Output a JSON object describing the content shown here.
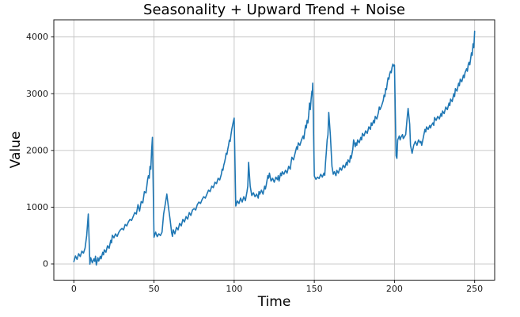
{
  "figure": {
    "background_color": "#ffffff"
  },
  "chart_data": {
    "type": "line",
    "title": "Seasonality + Upward Trend + Noise",
    "xlabel": "Time",
    "ylabel": "Value",
    "xlim": [
      -12.5,
      262.5
    ],
    "ylim": [
      -286,
      4302
    ],
    "xticks": [
      0,
      50,
      100,
      150,
      200,
      250
    ],
    "yticks": [
      0,
      1000,
      2000,
      3000,
      4000
    ],
    "grid": true,
    "legend_position": "none",
    "line_color": "#1f77b4",
    "line_width": 1.6,
    "grid_color": "#c3c3c3",
    "spine_color": "#1a1a1a",
    "tick_label_color": "#1a1a1a",
    "series": [
      {
        "name": "value",
        "points": [
          [
            0,
            40
          ],
          [
            1,
            140
          ],
          [
            2,
            80
          ],
          [
            3,
            180
          ],
          [
            4,
            130
          ],
          [
            5,
            225
          ],
          [
            6,
            190
          ],
          [
            7,
            280
          ],
          [
            8,
            500
          ],
          [
            9,
            880
          ],
          [
            10,
            -5
          ],
          [
            10.5,
            110
          ],
          [
            11.5,
            20
          ],
          [
            12.5,
            90
          ],
          [
            13,
            45
          ],
          [
            13.5,
            135
          ],
          [
            14,
            -20
          ],
          [
            15,
            110
          ],
          [
            15.5,
            50
          ],
          [
            16.5,
            135
          ],
          [
            17,
            90
          ],
          [
            18,
            205
          ],
          [
            18.5,
            160
          ],
          [
            19,
            250
          ],
          [
            20,
            205
          ],
          [
            21,
            320
          ],
          [
            22,
            275
          ],
          [
            23,
            415
          ],
          [
            23.5,
            370
          ],
          [
            24,
            505
          ],
          [
            25,
            460
          ],
          [
            26,
            530
          ],
          [
            27,
            485
          ],
          [
            28,
            555
          ],
          [
            29,
            600
          ],
          [
            30,
            625
          ],
          [
            31,
            600
          ],
          [
            32,
            695
          ],
          [
            33,
            670
          ],
          [
            34,
            740
          ],
          [
            35,
            785
          ],
          [
            36,
            765
          ],
          [
            37,
            835
          ],
          [
            38,
            905
          ],
          [
            39,
            880
          ],
          [
            40,
            1045
          ],
          [
            41,
            930
          ],
          [
            42,
            1100
          ],
          [
            43,
            1075
          ],
          [
            44,
            1275
          ],
          [
            45,
            1250
          ],
          [
            46,
            1485
          ],
          [
            46.5,
            1555
          ],
          [
            47,
            1510
          ],
          [
            47.5,
            1720
          ],
          [
            48,
            1670
          ],
          [
            48.5,
            2000
          ],
          [
            49,
            2230
          ],
          [
            50,
            470
          ],
          [
            51,
            560
          ],
          [
            52,
            480
          ],
          [
            53,
            530
          ],
          [
            54,
            500
          ],
          [
            55,
            560
          ],
          [
            56,
            880
          ],
          [
            57,
            1050
          ],
          [
            58,
            1230
          ],
          [
            59,
            1000
          ],
          [
            60,
            790
          ],
          [
            61,
            550
          ],
          [
            61.5,
            485
          ],
          [
            62,
            600
          ],
          [
            63,
            530
          ],
          [
            64,
            645
          ],
          [
            65,
            600
          ],
          [
            66,
            715
          ],
          [
            67,
            670
          ],
          [
            68,
            785
          ],
          [
            69,
            740
          ],
          [
            70,
            835
          ],
          [
            71,
            790
          ],
          [
            72,
            905
          ],
          [
            73,
            855
          ],
          [
            74,
            950
          ],
          [
            75,
            975
          ],
          [
            76,
            950
          ],
          [
            77,
            1045
          ],
          [
            78,
            1090
          ],
          [
            79,
            1065
          ],
          [
            80,
            1135
          ],
          [
            81,
            1185
          ],
          [
            82,
            1160
          ],
          [
            83,
            1230
          ],
          [
            84,
            1300
          ],
          [
            85,
            1275
          ],
          [
            86,
            1370
          ],
          [
            87,
            1345
          ],
          [
            88,
            1440
          ],
          [
            89,
            1415
          ],
          [
            90,
            1510
          ],
          [
            91,
            1480
          ],
          [
            92,
            1580
          ],
          [
            92.5,
            1670
          ],
          [
            93,
            1650
          ],
          [
            93.5,
            1740
          ],
          [
            94,
            1790
          ],
          [
            94.5,
            1860
          ],
          [
            95,
            1950
          ],
          [
            95.5,
            1930
          ],
          [
            96,
            2020
          ],
          [
            96.5,
            2090
          ],
          [
            97,
            2180
          ],
          [
            97.5,
            2160
          ],
          [
            98,
            2275
          ],
          [
            98.5,
            2370
          ],
          [
            99,
            2440
          ],
          [
            99.5,
            2510
          ],
          [
            100,
            2570
          ],
          [
            101,
            1020
          ],
          [
            102,
            1110
          ],
          [
            103,
            1065
          ],
          [
            104,
            1160
          ],
          [
            105,
            1090
          ],
          [
            106,
            1185
          ],
          [
            107,
            1115
          ],
          [
            108,
            1275
          ],
          [
            108.5,
            1370
          ],
          [
            109,
            1790
          ],
          [
            110,
            1370
          ],
          [
            111,
            1205
          ],
          [
            112,
            1255
          ],
          [
            113,
            1185
          ],
          [
            114,
            1230
          ],
          [
            115,
            1160
          ],
          [
            115.5,
            1275
          ],
          [
            116,
            1230
          ],
          [
            117,
            1300
          ],
          [
            118,
            1230
          ],
          [
            119,
            1370
          ],
          [
            119.5,
            1320
          ],
          [
            120,
            1390
          ],
          [
            121,
            1555
          ],
          [
            121.5,
            1510
          ],
          [
            122,
            1600
          ],
          [
            123,
            1460
          ],
          [
            124,
            1510
          ],
          [
            125,
            1440
          ],
          [
            126,
            1530
          ],
          [
            127,
            1485
          ],
          [
            127.5,
            1555
          ],
          [
            128,
            1460
          ],
          [
            129,
            1600
          ],
          [
            129.5,
            1555
          ],
          [
            130,
            1625
          ],
          [
            131,
            1580
          ],
          [
            132,
            1650
          ],
          [
            133,
            1600
          ],
          [
            134,
            1720
          ],
          [
            135,
            1670
          ],
          [
            135.5,
            1790
          ],
          [
            136,
            1880
          ],
          [
            137,
            1835
          ],
          [
            138,
            1950
          ],
          [
            139,
            2065
          ],
          [
            139.5,
            2020
          ],
          [
            140,
            2135
          ],
          [
            141,
            2090
          ],
          [
            142,
            2185
          ],
          [
            143,
            2255
          ],
          [
            143.5,
            2205
          ],
          [
            144,
            2325
          ],
          [
            144.5,
            2440
          ],
          [
            145,
            2395
          ],
          [
            145.5,
            2530
          ],
          [
            146,
            2485
          ],
          [
            146.5,
            2625
          ],
          [
            147,
            2835
          ],
          [
            147.5,
            2720
          ],
          [
            148,
            2905
          ],
          [
            148.5,
            3045
          ],
          [
            148.8,
            3000
          ],
          [
            149,
            3185
          ],
          [
            150,
            1550
          ],
          [
            151,
            1490
          ],
          [
            152,
            1530
          ],
          [
            153,
            1505
          ],
          [
            154,
            1580
          ],
          [
            155,
            1530
          ],
          [
            156,
            1600
          ],
          [
            156.5,
            1560
          ],
          [
            157,
            1790
          ],
          [
            157.5,
            1975
          ],
          [
            158,
            2185
          ],
          [
            158.5,
            2275
          ],
          [
            159,
            2670
          ],
          [
            160,
            2275
          ],
          [
            161,
            1720
          ],
          [
            161.8,
            1580
          ],
          [
            162.5,
            1625
          ],
          [
            163.5,
            1555
          ],
          [
            164,
            1650
          ],
          [
            165,
            1600
          ],
          [
            166,
            1695
          ],
          [
            167,
            1650
          ],
          [
            168,
            1740
          ],
          [
            169,
            1695
          ],
          [
            170,
            1790
          ],
          [
            170.5,
            1740
          ],
          [
            171,
            1835
          ],
          [
            172,
            1790
          ],
          [
            172.5,
            1905
          ],
          [
            173,
            1860
          ],
          [
            174,
            2020
          ],
          [
            174.5,
            2185
          ],
          [
            175,
            2135
          ],
          [
            175.5,
            2065
          ],
          [
            176,
            2135
          ],
          [
            176.5,
            2090
          ],
          [
            177,
            2185
          ],
          [
            178,
            2135
          ],
          [
            179,
            2230
          ],
          [
            179.5,
            2185
          ],
          [
            180,
            2300
          ],
          [
            181,
            2255
          ],
          [
            182,
            2345
          ],
          [
            183,
            2300
          ],
          [
            184,
            2415
          ],
          [
            185,
            2370
          ],
          [
            185.5,
            2485
          ],
          [
            186,
            2440
          ],
          [
            187,
            2530
          ],
          [
            187.5,
            2485
          ],
          [
            188,
            2600
          ],
          [
            189,
            2555
          ],
          [
            190,
            2670
          ],
          [
            190.5,
            2765
          ],
          [
            191,
            2720
          ],
          [
            192,
            2790
          ],
          [
            193,
            2880
          ],
          [
            193.5,
            2975
          ],
          [
            194,
            2950
          ],
          [
            194.5,
            3090
          ],
          [
            195,
            3070
          ],
          [
            195.5,
            3185
          ],
          [
            196,
            3280
          ],
          [
            196.5,
            3255
          ],
          [
            197,
            3345
          ],
          [
            197.5,
            3395
          ],
          [
            198,
            3370
          ],
          [
            198.5,
            3465
          ],
          [
            199,
            3520
          ],
          [
            199.5,
            3490
          ],
          [
            200,
            3505
          ],
          [
            201,
            1905
          ],
          [
            201.5,
            1860
          ],
          [
            202,
            2185
          ],
          [
            203,
            2255
          ],
          [
            203.5,
            2185
          ],
          [
            204,
            2230
          ],
          [
            205,
            2280
          ],
          [
            205.5,
            2210
          ],
          [
            206,
            2230
          ],
          [
            207,
            2280
          ],
          [
            208,
            2600
          ],
          [
            208.5,
            2740
          ],
          [
            209,
            2600
          ],
          [
            209.5,
            2460
          ],
          [
            210,
            2090
          ],
          [
            210.5,
            2020
          ],
          [
            211,
            1950
          ],
          [
            212,
            2090
          ],
          [
            213,
            2160
          ],
          [
            214,
            2090
          ],
          [
            215,
            2185
          ],
          [
            216,
            2135
          ],
          [
            216.5,
            2160
          ],
          [
            217,
            2090
          ],
          [
            218,
            2230
          ],
          [
            219,
            2370
          ],
          [
            219.5,
            2325
          ],
          [
            220,
            2415
          ],
          [
            221,
            2370
          ],
          [
            222,
            2440
          ],
          [
            222.5,
            2395
          ],
          [
            223,
            2440
          ],
          [
            224,
            2485
          ],
          [
            224.5,
            2440
          ],
          [
            225,
            2580
          ],
          [
            226,
            2530
          ],
          [
            227,
            2600
          ],
          [
            228,
            2555
          ],
          [
            229,
            2650
          ],
          [
            229.5,
            2600
          ],
          [
            230,
            2695
          ],
          [
            231,
            2650
          ],
          [
            232,
            2765
          ],
          [
            233,
            2720
          ],
          [
            234,
            2835
          ],
          [
            234.5,
            2790
          ],
          [
            235,
            2905
          ],
          [
            236,
            2860
          ],
          [
            237,
            3000
          ],
          [
            237.5,
            2950
          ],
          [
            238,
            3090
          ],
          [
            239,
            3045
          ],
          [
            240,
            3185
          ],
          [
            240.5,
            3140
          ],
          [
            241,
            3255
          ],
          [
            242,
            3210
          ],
          [
            243,
            3325
          ],
          [
            243.5,
            3280
          ],
          [
            244,
            3370
          ],
          [
            245,
            3440
          ],
          [
            245.5,
            3395
          ],
          [
            246,
            3510
          ],
          [
            246.5,
            3555
          ],
          [
            247,
            3510
          ],
          [
            248,
            3720
          ],
          [
            248.5,
            3675
          ],
          [
            249,
            3880
          ],
          [
            249.5,
            3810
          ],
          [
            250,
            4100
          ]
        ]
      }
    ]
  }
}
